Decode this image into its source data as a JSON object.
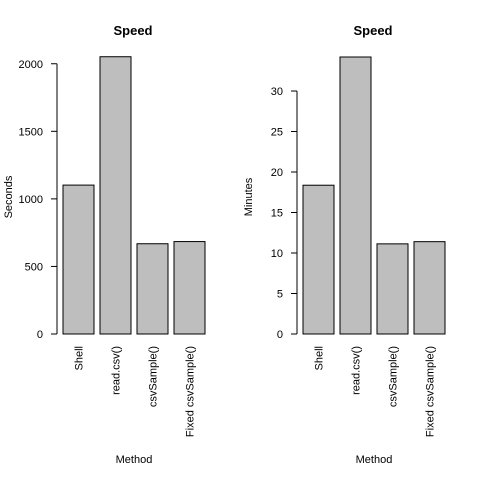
{
  "chart_data": [
    {
      "type": "bar",
      "title": "Speed",
      "xlabel": "Method",
      "ylabel": "Seconds",
      "categories": [
        "Shell",
        "read.csv()",
        "csvSample()",
        "Fixed csvSample()"
      ],
      "values": [
        1102,
        2052,
        668,
        684
      ],
      "ylim": [
        0,
        2050
      ],
      "yticks": [
        0,
        500,
        1000,
        1500,
        2000
      ],
      "grid": false,
      "bar_color": "#bebebe",
      "border_color": "#000000"
    },
    {
      "type": "bar",
      "title": "Speed",
      "xlabel": "Method",
      "ylabel": "Minutes",
      "categories": [
        "Shell",
        "read.csv()",
        "csvSample()",
        "Fixed csvSample()"
      ],
      "values": [
        18.37,
        34.2,
        11.13,
        11.4
      ],
      "ylim": [
        0,
        34.2
      ],
      "yticks": [
        0,
        5,
        10,
        15,
        20,
        25,
        30
      ],
      "grid": false,
      "bar_color": "#bebebe",
      "border_color": "#000000"
    }
  ]
}
